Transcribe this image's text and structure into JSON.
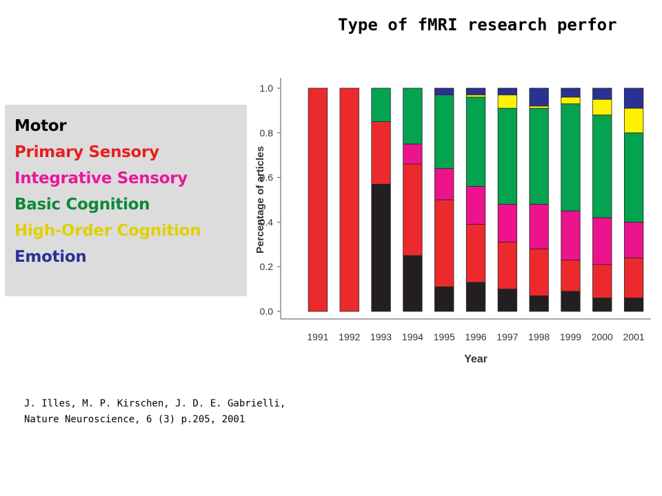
{
  "title": "Type of fMRI research perfor",
  "legend": [
    {
      "label": "Motor",
      "color": "#000000"
    },
    {
      "label": "Primary Sensory",
      "color": "#e81e1e"
    },
    {
      "label": "Integrative Sensory",
      "color": "#e8189a"
    },
    {
      "label": "Basic Cognition",
      "color": "#0a8a3a"
    },
    {
      "label": "High-Order Cognition",
      "color": "#e0d000"
    },
    {
      "label": "Emotion",
      "color": "#28309a"
    }
  ],
  "citation": {
    "line1": "J. Illes, M. P. Kirschen, J. D. E. Gabrielli,",
    "line2": "Nature Neuroscience, 6 (3) p.205, 2001"
  },
  "chart_data": {
    "type": "bar",
    "stacked": true,
    "xlabel": "Year",
    "ylabel": "Percentage of articles",
    "ylim": [
      0,
      1
    ],
    "yticks": [
      "0.0",
      "0.2",
      "0.4",
      "0.6",
      "0.8",
      "1.0"
    ],
    "categories": [
      "1991",
      "1992",
      "1993",
      "1994",
      "1995",
      "1996",
      "1997",
      "1998",
      "1999",
      "2000",
      "2001"
    ],
    "series": [
      {
        "name": "Motor",
        "color": "#231f20",
        "values": [
          0.0,
          0.0,
          0.57,
          0.25,
          0.11,
          0.13,
          0.1,
          0.07,
          0.09,
          0.06,
          0.06
        ]
      },
      {
        "name": "Primary Sensory",
        "color": "#ec2a2d",
        "values": [
          1.0,
          1.0,
          0.28,
          0.41,
          0.39,
          0.26,
          0.21,
          0.21,
          0.14,
          0.15,
          0.18
        ]
      },
      {
        "name": "Integrative Sensory",
        "color": "#ec138d",
        "values": [
          0.0,
          0.0,
          0.0,
          0.09,
          0.14,
          0.17,
          0.17,
          0.2,
          0.22,
          0.21,
          0.16
        ]
      },
      {
        "name": "Basic Cognition",
        "color": "#03a350",
        "values": [
          0.0,
          0.0,
          0.15,
          0.25,
          0.33,
          0.4,
          0.43,
          0.43,
          0.48,
          0.46,
          0.4
        ]
      },
      {
        "name": "High-Order Cognition",
        "color": "#fff200",
        "values": [
          0.0,
          0.0,
          0.0,
          0.0,
          0.0,
          0.01,
          0.06,
          0.01,
          0.03,
          0.07,
          0.11
        ]
      },
      {
        "name": "Emotion",
        "color": "#2b3192",
        "values": [
          0.0,
          0.0,
          0.0,
          0.0,
          0.03,
          0.03,
          0.03,
          0.08,
          0.04,
          0.05,
          0.09
        ]
      }
    ]
  }
}
